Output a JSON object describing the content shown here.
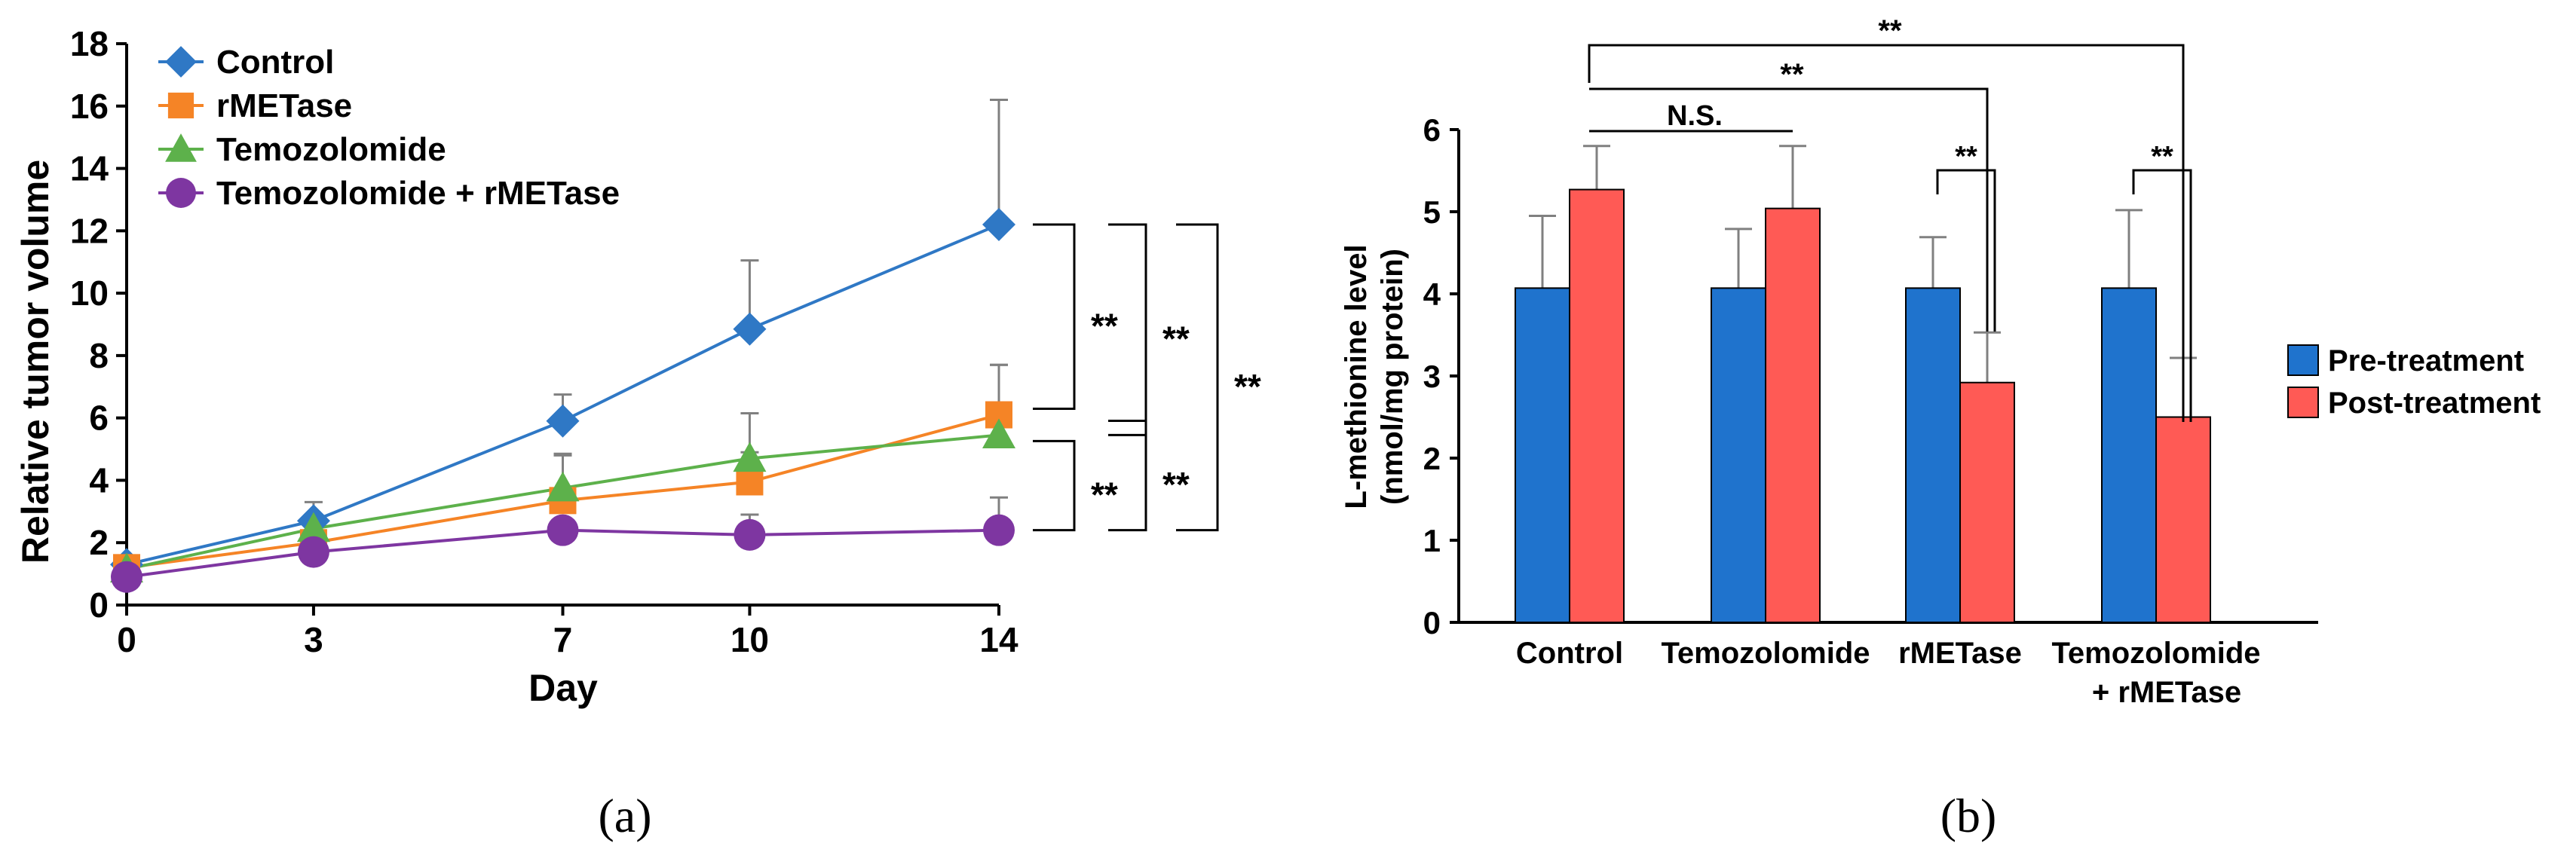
{
  "chart_data": [
    {
      "panel": "(a)",
      "type": "line",
      "xlabel": "Day",
      "ylabel": "Relative tumor volume",
      "x": [
        0,
        3,
        7,
        10,
        14
      ],
      "xticks": [
        "0",
        "3",
        "7",
        "10",
        "14"
      ],
      "ylim": [
        0,
        18
      ],
      "yticks": [
        "0",
        "2",
        "4",
        "6",
        "8",
        "10",
        "12",
        "14",
        "16",
        "18"
      ],
      "series": [
        {
          "name": "Control",
          "marker": "diamond",
          "color": "#2f78c5",
          "values": [
            1.3,
            2.7,
            5.9,
            8.85,
            12.2
          ],
          "error": [
            0.1,
            0.6,
            0.85,
            2.2,
            4.0
          ]
        },
        {
          "name": "rMETase",
          "marker": "square",
          "color": "#f58426",
          "values": [
            1.2,
            2.0,
            3.35,
            3.95,
            6.1
          ],
          "error": [
            0.1,
            0.35,
            1.45,
            0.95,
            1.6
          ]
        },
        {
          "name": "Temozolomide",
          "marker": "triangle",
          "color": "#5db14b",
          "values": [
            1.15,
            2.45,
            3.75,
            4.7,
            5.45
          ],
          "error": [
            0.1,
            0.45,
            1.1,
            1.45,
            2.25
          ]
        },
        {
          "name": "Temozolomide + rMETase",
          "marker": "circle",
          "color": "#7e36a1",
          "values": [
            0.9,
            1.7,
            2.4,
            2.25,
            2.4
          ],
          "error": [
            0.1,
            0.2,
            0.2,
            0.65,
            1.05
          ]
        }
      ],
      "significance": [
        "**",
        "**",
        "**",
        "**",
        "**"
      ]
    },
    {
      "panel": "(b)",
      "type": "bar",
      "ylabel_line1": "L-methionine level",
      "ylabel_line2": "(nmol/mg protein)",
      "ylim": [
        0,
        6
      ],
      "yticks": [
        "0",
        "1",
        "2",
        "3",
        "4",
        "5",
        "6"
      ],
      "categories": [
        {
          "line1": "Control",
          "line2": ""
        },
        {
          "line1": "Temozolomide",
          "line2": ""
        },
        {
          "line1": "rMETase",
          "line2": ""
        },
        {
          "line1": "Temozolomide",
          "line2": "+ rMETase"
        }
      ],
      "series": [
        {
          "name": "Pre-treatment",
          "color": "#1f73cd",
          "values": [
            4.07,
            4.07,
            4.07,
            4.07
          ],
          "error": [
            0.88,
            0.72,
            0.62,
            0.95
          ]
        },
        {
          "name": "Post-treatment",
          "color": "#ff5a55",
          "values": [
            5.27,
            5.04,
            2.92,
            2.5
          ],
          "error": [
            0.53,
            0.76,
            0.61,
            0.72
          ]
        }
      ],
      "significance": [
        "**",
        "**",
        "N.S.",
        "**",
        "**"
      ]
    }
  ],
  "captions": [
    "(a)",
    "(b)"
  ]
}
